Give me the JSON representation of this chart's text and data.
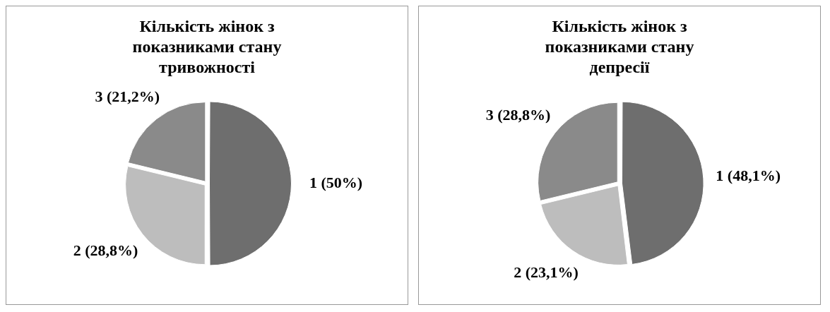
{
  "chart_data": [
    {
      "type": "pie",
      "title": "Кількість жінок з показниками стану тривожності",
      "categories": [
        "1",
        "2",
        "3"
      ],
      "values": [
        50,
        28.8,
        21.2
      ],
      "value_labels": [
        "(50%)",
        "(28,8%)",
        "(21,2%)"
      ],
      "colors": [
        "#6e6e6e",
        "#bdbdbd",
        "#8a8a8a"
      ],
      "legend": false
    },
    {
      "type": "pie",
      "title": "Кількість жінок з показниками стану депресії",
      "categories": [
        "1",
        "2",
        "3"
      ],
      "values": [
        48.1,
        23.1,
        28.8
      ],
      "value_labels": [
        "(48,1%)",
        "(23,1%)",
        "(28,8%)"
      ],
      "colors": [
        "#6e6e6e",
        "#bdbdbd",
        "#8a8a8a"
      ],
      "legend": false
    }
  ]
}
